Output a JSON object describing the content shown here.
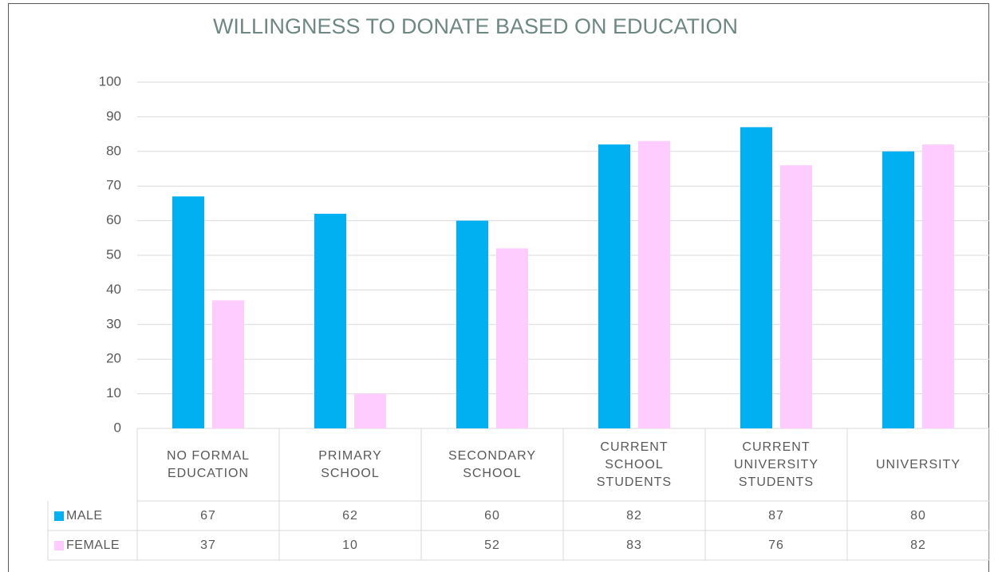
{
  "chart_data": {
    "type": "bar",
    "title": "WILLINGNESS TO DONATE BASED ON EDUCATION",
    "categories": [
      "NO FORMAL EDUCATION",
      "PRIMARY SCHOOL",
      "SECONDARY SCHOOL",
      "CURRENT SCHOOL STUDENTS",
      "CURRENT UNIVERSITY STUDENTS",
      "UNIVERSITY"
    ],
    "series": [
      {
        "name": "MALE",
        "color": "#00b0f0",
        "values": [
          67,
          62,
          60,
          82,
          87,
          80
        ]
      },
      {
        "name": "FEMALE",
        "color": "#ffccff",
        "values": [
          37,
          10,
          52,
          83,
          76,
          82
        ]
      }
    ],
    "ylim": [
      0,
      100
    ],
    "yticks": [
      0,
      10,
      20,
      30,
      40,
      50,
      60,
      70,
      80,
      90,
      100
    ],
    "grid": true
  }
}
